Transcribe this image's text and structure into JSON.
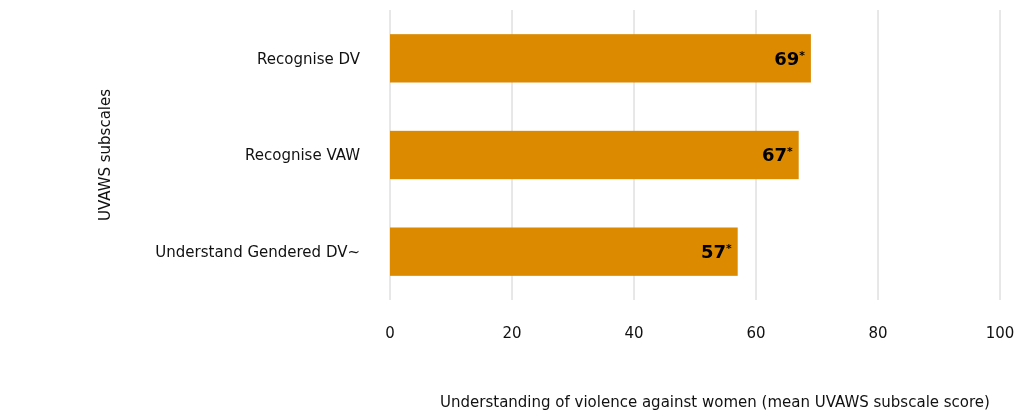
{
  "chart_data": {
    "type": "bar",
    "orientation": "horizontal",
    "categories": [
      "Recognise DV",
      "Recognise VAW",
      "Understand Gendered DV~"
    ],
    "values": [
      69,
      67,
      57
    ],
    "color": "#dc8a00",
    "value_labels": [
      "69$^{*}$",
      "67$^{*}$",
      "57$^{*}$"
    ],
    "xlim": [
      0,
      100
    ],
    "xticks": [
      0,
      20,
      40,
      60,
      80,
      100
    ],
    "grid": "x",
    "xlabel": "Understanding of violence against women (mean UVAWS subscale score)",
    "ylabel": "UVAWS subscales"
  }
}
